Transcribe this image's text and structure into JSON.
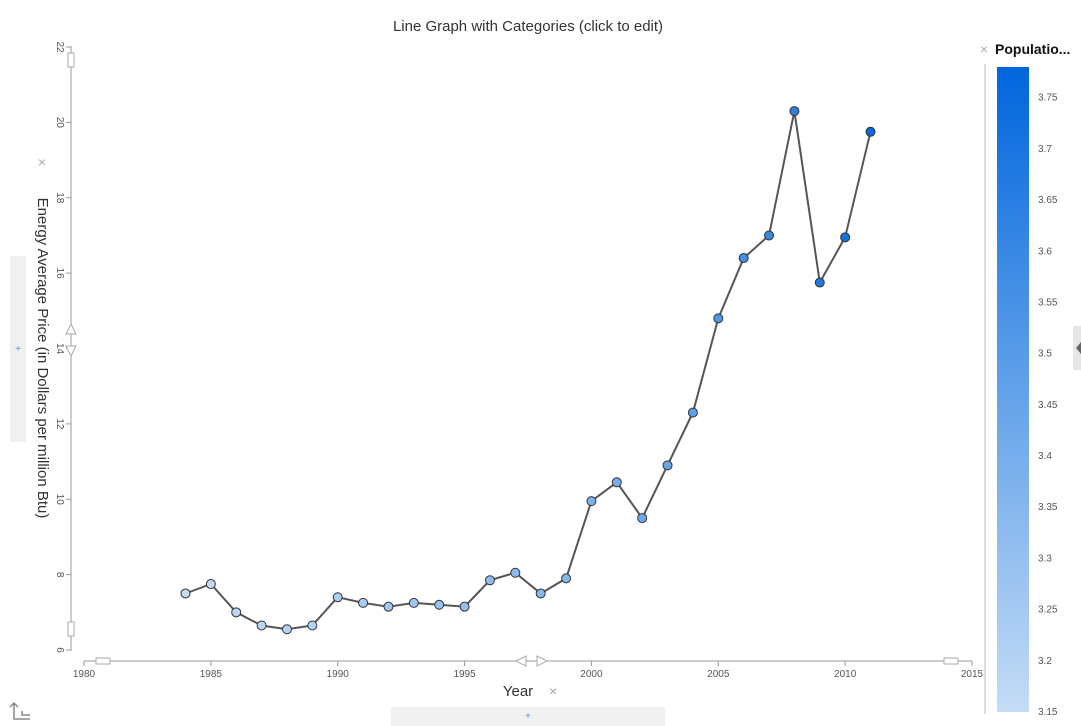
{
  "chart_data": {
    "type": "line",
    "title": "Line Graph with Categories (click to edit)",
    "xlabel": "Year",
    "ylabel": "Energy Average Price (in Dollars per million Btu)",
    "xlim": [
      1980,
      2015
    ],
    "ylim": [
      6,
      22
    ],
    "xticks": [
      1980,
      1985,
      1990,
      1995,
      2000,
      2005,
      2010,
      2015
    ],
    "yticks": [
      6,
      8,
      10,
      12,
      14,
      16,
      18,
      20,
      22
    ],
    "grid": false,
    "x": [
      1984,
      1985,
      1986,
      1987,
      1988,
      1989,
      1990,
      1991,
      1992,
      1993,
      1994,
      1995,
      1996,
      1997,
      1998,
      1999,
      2000,
      2001,
      2002,
      2003,
      2004,
      2005,
      2006,
      2007,
      2008,
      2009,
      2010,
      2011
    ],
    "y": [
      7.5,
      7.75,
      7.0,
      6.65,
      6.55,
      6.65,
      7.4,
      7.25,
      7.15,
      7.25,
      7.2,
      7.15,
      7.85,
      8.05,
      7.5,
      7.9,
      9.95,
      10.45,
      9.5,
      10.9,
      12.3,
      14.8,
      16.4,
      17.0,
      20.3,
      15.75,
      16.95,
      19.75
    ],
    "color_values": [
      3.15,
      3.16,
      3.18,
      3.19,
      3.2,
      3.21,
      3.23,
      3.24,
      3.26,
      3.27,
      3.29,
      3.3,
      3.32,
      3.33,
      3.35,
      3.36,
      3.38,
      3.4,
      3.42,
      3.45,
      3.48,
      3.52,
      3.56,
      3.6,
      3.64,
      3.68,
      3.72,
      3.76
    ],
    "legend": {
      "title": "Populatio...",
      "placement": "right",
      "min": 3.15,
      "max": 3.78,
      "ticks": [
        "3.75",
        "3.7",
        "3.65",
        "3.6",
        "3.55",
        "3.5",
        "3.45",
        "3.4",
        "3.35",
        "3.3",
        "3.25",
        "3.2",
        "3.15"
      ],
      "color_low": "#c4dcf6",
      "color_high": "#0066dd"
    }
  },
  "icons": {
    "close": "×",
    "plus": "+",
    "axis_switch": "⮤"
  }
}
